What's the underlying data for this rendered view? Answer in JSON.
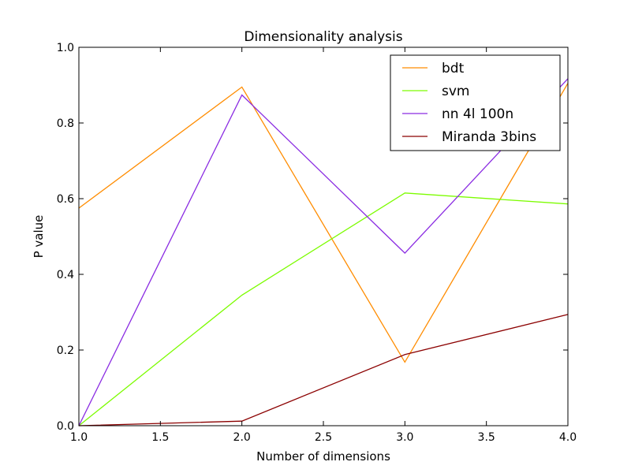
{
  "chart_data": {
    "type": "line",
    "title": "Dimensionality analysis",
    "xlabel": "Number of dimensions",
    "ylabel": "P value",
    "xlim": [
      1.0,
      4.0
    ],
    "ylim": [
      0.0,
      1.0
    ],
    "x": [
      1.0,
      2.0,
      3.0,
      4.0
    ],
    "xticks": [
      "1.0",
      "1.5",
      "2.0",
      "2.5",
      "3.0",
      "3.5",
      "4.0"
    ],
    "yticks": [
      "0.0",
      "0.2",
      "0.4",
      "0.6",
      "0.8",
      "1.0"
    ],
    "grid": false,
    "legend_position": "top-right",
    "series": [
      {
        "name": "bdt",
        "color": "#ff8c00",
        "values": [
          0.575,
          0.895,
          0.168,
          0.905
        ]
      },
      {
        "name": "svm",
        "color": "#7cfc00",
        "values": [
          0.0,
          0.345,
          0.615,
          0.586
        ]
      },
      {
        "name": "nn 4l 100n",
        "color": "#8a2be2",
        "values": [
          0.0,
          0.874,
          0.456,
          0.917
        ]
      },
      {
        "name": "Miranda 3bins",
        "color": "#8b0000",
        "values": [
          0.0,
          0.012,
          0.188,
          0.294
        ]
      }
    ]
  }
}
